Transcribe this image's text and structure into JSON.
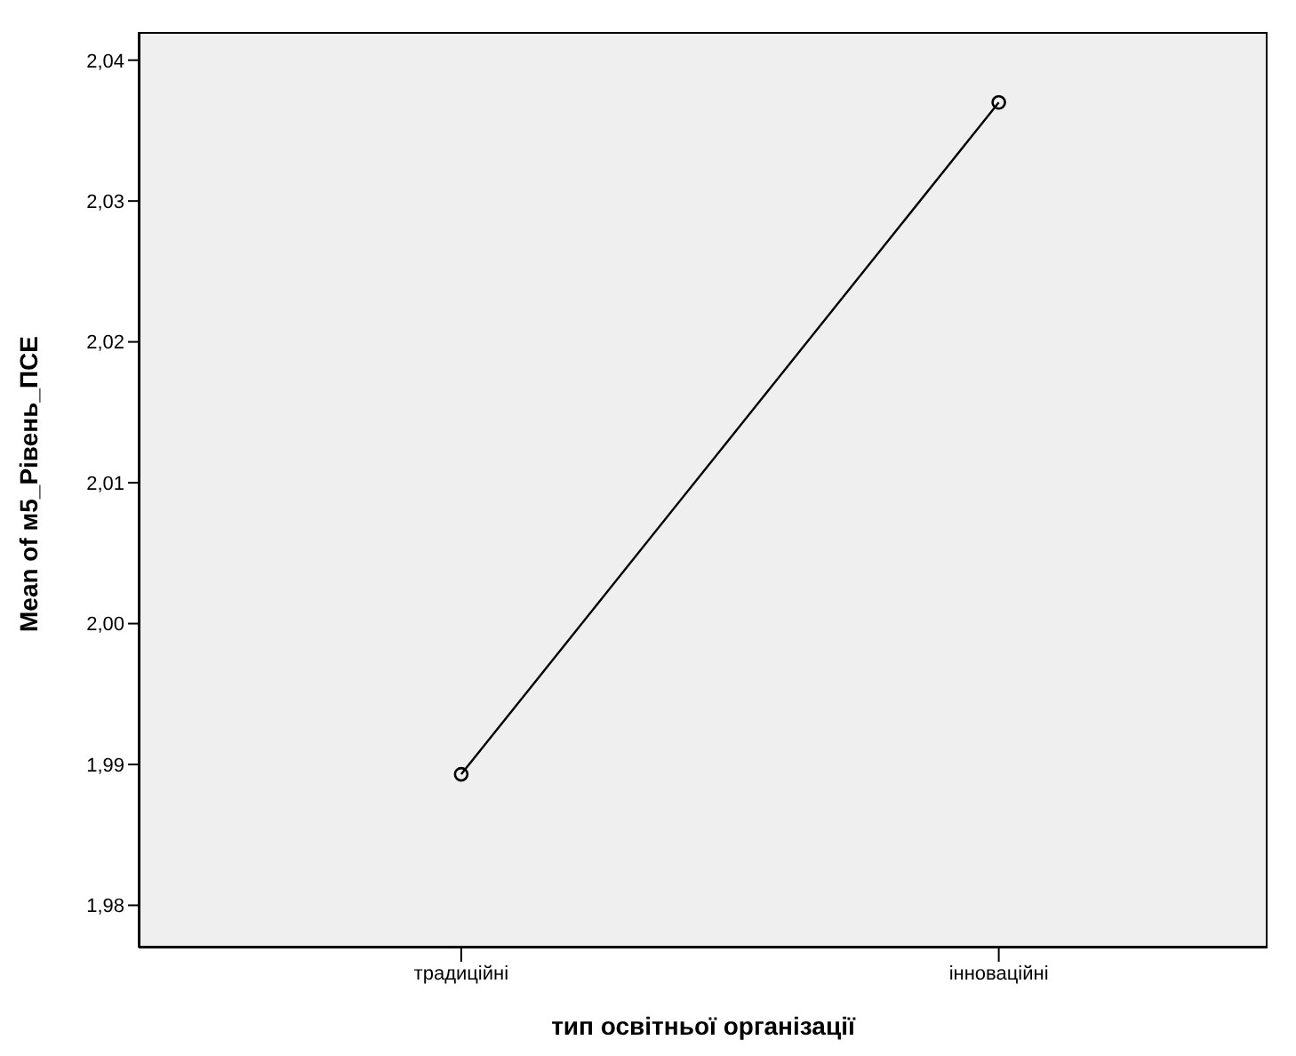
{
  "chart_data": {
    "type": "line",
    "xlabel": "тип освітньої організації",
    "ylabel": "Mean of м5_Рівень_ПСЕ",
    "categories": [
      "традиційні",
      "інноваційні"
    ],
    "series": [
      {
        "color": "#000000",
        "values": [
          1.9893,
          2.037
        ]
      }
    ],
    "ylim": [
      1.977,
      2.042
    ],
    "yticks": [
      {
        "value": 1.98,
        "label": "1,98"
      },
      {
        "value": 1.99,
        "label": "1,99"
      },
      {
        "value": 2.0,
        "label": "2,00"
      },
      {
        "value": 2.01,
        "label": "2,01"
      },
      {
        "value": 2.02,
        "label": "2,02"
      },
      {
        "value": 2.03,
        "label": "2,03"
      },
      {
        "value": 2.04,
        "label": "2,04"
      }
    ],
    "grid": false,
    "legend": false,
    "marker": "circle",
    "line_style": "solid"
  }
}
